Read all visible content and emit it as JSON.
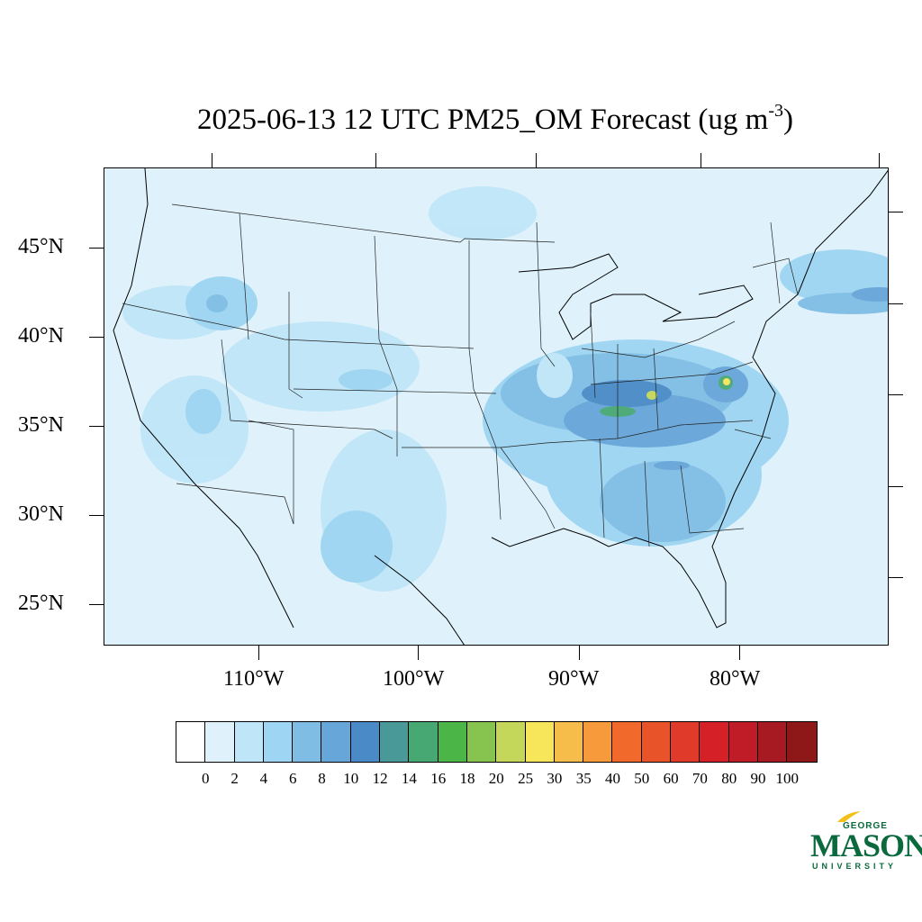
{
  "title": {
    "main": "2025-06-13 12 UTC PM25_OM Forecast (ug m",
    "sup": "-3",
    "close": ")"
  },
  "map": {
    "lat_labels": [
      "45°N",
      "40°N",
      "35°N",
      "30°N",
      "25°N"
    ],
    "lon_labels": [
      "110°W",
      "100°W",
      "90°W",
      "80°W"
    ]
  },
  "colorbar": {
    "labels": [
      "0",
      "2",
      "4",
      "6",
      "8",
      "10",
      "12",
      "14",
      "16",
      "18",
      "20",
      "25",
      "30",
      "35",
      "40",
      "50",
      "60",
      "70",
      "80",
      "90",
      "100"
    ],
    "colors": [
      "#ffffff",
      "#dff2fb",
      "#bfe6f8",
      "#9dd5f2",
      "#80bde5",
      "#66a6d9",
      "#4a8ac7",
      "#4a9999",
      "#48a874",
      "#4bb548",
      "#86c44f",
      "#c4d75a",
      "#f7e65a",
      "#f7bd4a",
      "#f79a3c",
      "#f26a2b",
      "#e8532a",
      "#e03a2a",
      "#d62028",
      "#c01c27",
      "#a81a22",
      "#8e1717"
    ]
  },
  "logo": {
    "top": "GEORGE",
    "main": "MASON",
    "bottom": "UNIVERSITY"
  }
}
